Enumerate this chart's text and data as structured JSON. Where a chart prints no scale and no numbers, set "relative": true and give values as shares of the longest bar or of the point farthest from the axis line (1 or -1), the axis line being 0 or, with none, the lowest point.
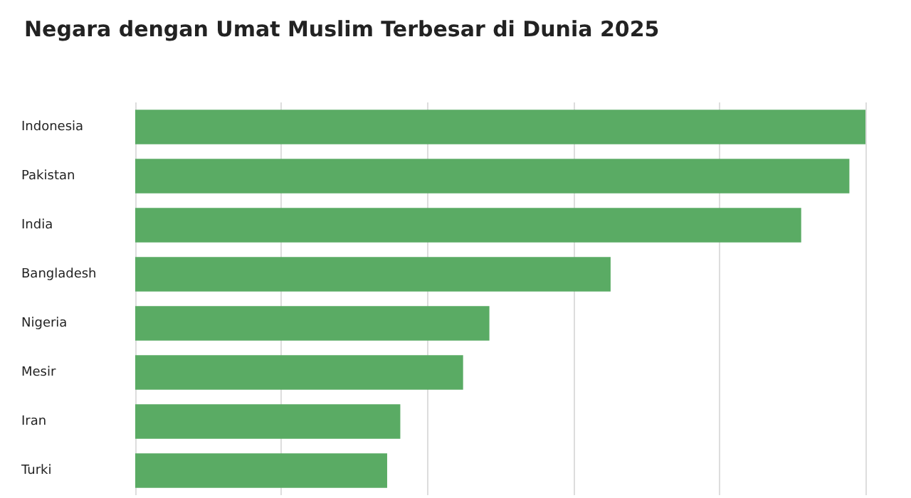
{
  "chart_data": {
    "type": "bar",
    "orientation": "horizontal",
    "relative": true,
    "title": "Negara dengan Umat Muslim Terbesar di Dunia 2025",
    "categories": [
      "Indonesia",
      "Pakistan",
      "India",
      "Bangladesh",
      "Nigeria",
      "Mesir",
      "Iran",
      "Turki"
    ],
    "values": [
      1,
      0.978,
      0.912,
      0.651,
      0.485,
      0.449,
      0.363,
      0.345
    ],
    "color": "#5aab64",
    "grid": "x"
  }
}
